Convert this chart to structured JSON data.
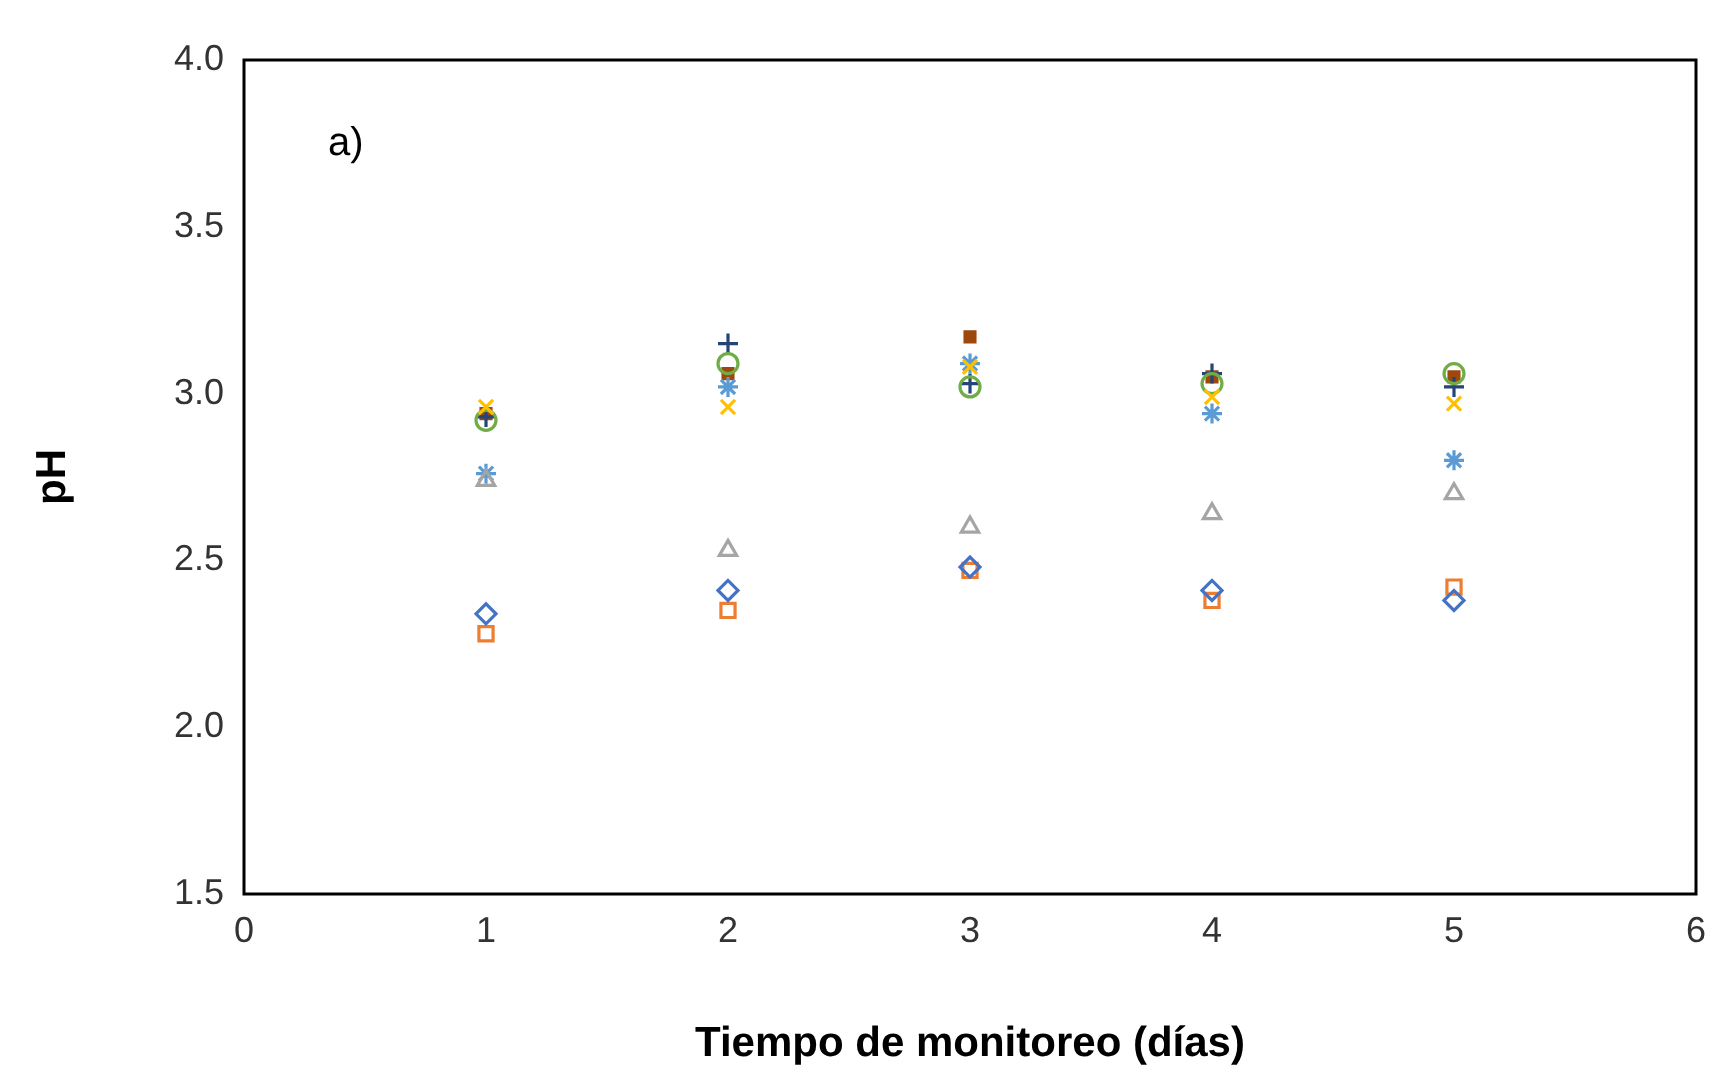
{
  "chart_data": {
    "type": "scatter",
    "xlabel": "Tiempo de monitoreo (días)",
    "ylabel": "pH",
    "x": [
      1,
      2,
      3,
      4,
      5
    ],
    "series": [
      {
        "color": "#4472c4",
        "marker": "diamond",
        "values": [
          2.34,
          2.41,
          2.48,
          2.41,
          2.38
        ]
      },
      {
        "color": "#ed7d31",
        "marker": "square",
        "values": [
          2.28,
          2.35,
          2.47,
          2.38,
          2.42
        ]
      },
      {
        "color": "#a5a5a5",
        "marker": "triangle",
        "values": [
          2.74,
          2.53,
          2.6,
          2.64,
          2.7
        ]
      },
      {
        "color": "#ffc000",
        "marker": "cross",
        "values": [
          2.96,
          2.96,
          3.08,
          2.99,
          2.97
        ]
      },
      {
        "color": "#5b9bd5",
        "marker": "cross",
        "values": [
          2.76,
          3.02,
          3.09,
          2.94,
          2.8
        ]
      },
      {
        "color": "#70ad47",
        "marker": "circle",
        "values": [
          2.92,
          3.09,
          3.02,
          3.03,
          3.06
        ]
      },
      {
        "color": "#264478",
        "marker": "cross",
        "values": [
          2.93,
          3.15,
          3.03,
          3.06,
          3.02
        ]
      },
      {
        "color": "#9e480e",
        "marker": "square",
        "values": [
          2.94,
          3.06,
          3.17,
          3.05,
          3.05
        ]
      }
    ],
    "xlim": [
      0,
      6
    ],
    "xticks": [
      0,
      1,
      2,
      3,
      4,
      5,
      6
    ],
    "ylim": [
      1.5,
      4.0
    ],
    "yticks": [
      {
        "value": 1.5,
        "label": "1.5"
      },
      {
        "value": 2,
        "label": "2.0"
      },
      {
        "value": 2.5,
        "label": "2.5"
      },
      {
        "value": 3,
        "label": "3.0"
      },
      {
        "value": 3.5,
        "label": "3.5"
      },
      {
        "value": 4,
        "label": "4.0"
      }
    ],
    "grid": false,
    "legend": false,
    "annotations": [
      "a)"
    ]
  }
}
